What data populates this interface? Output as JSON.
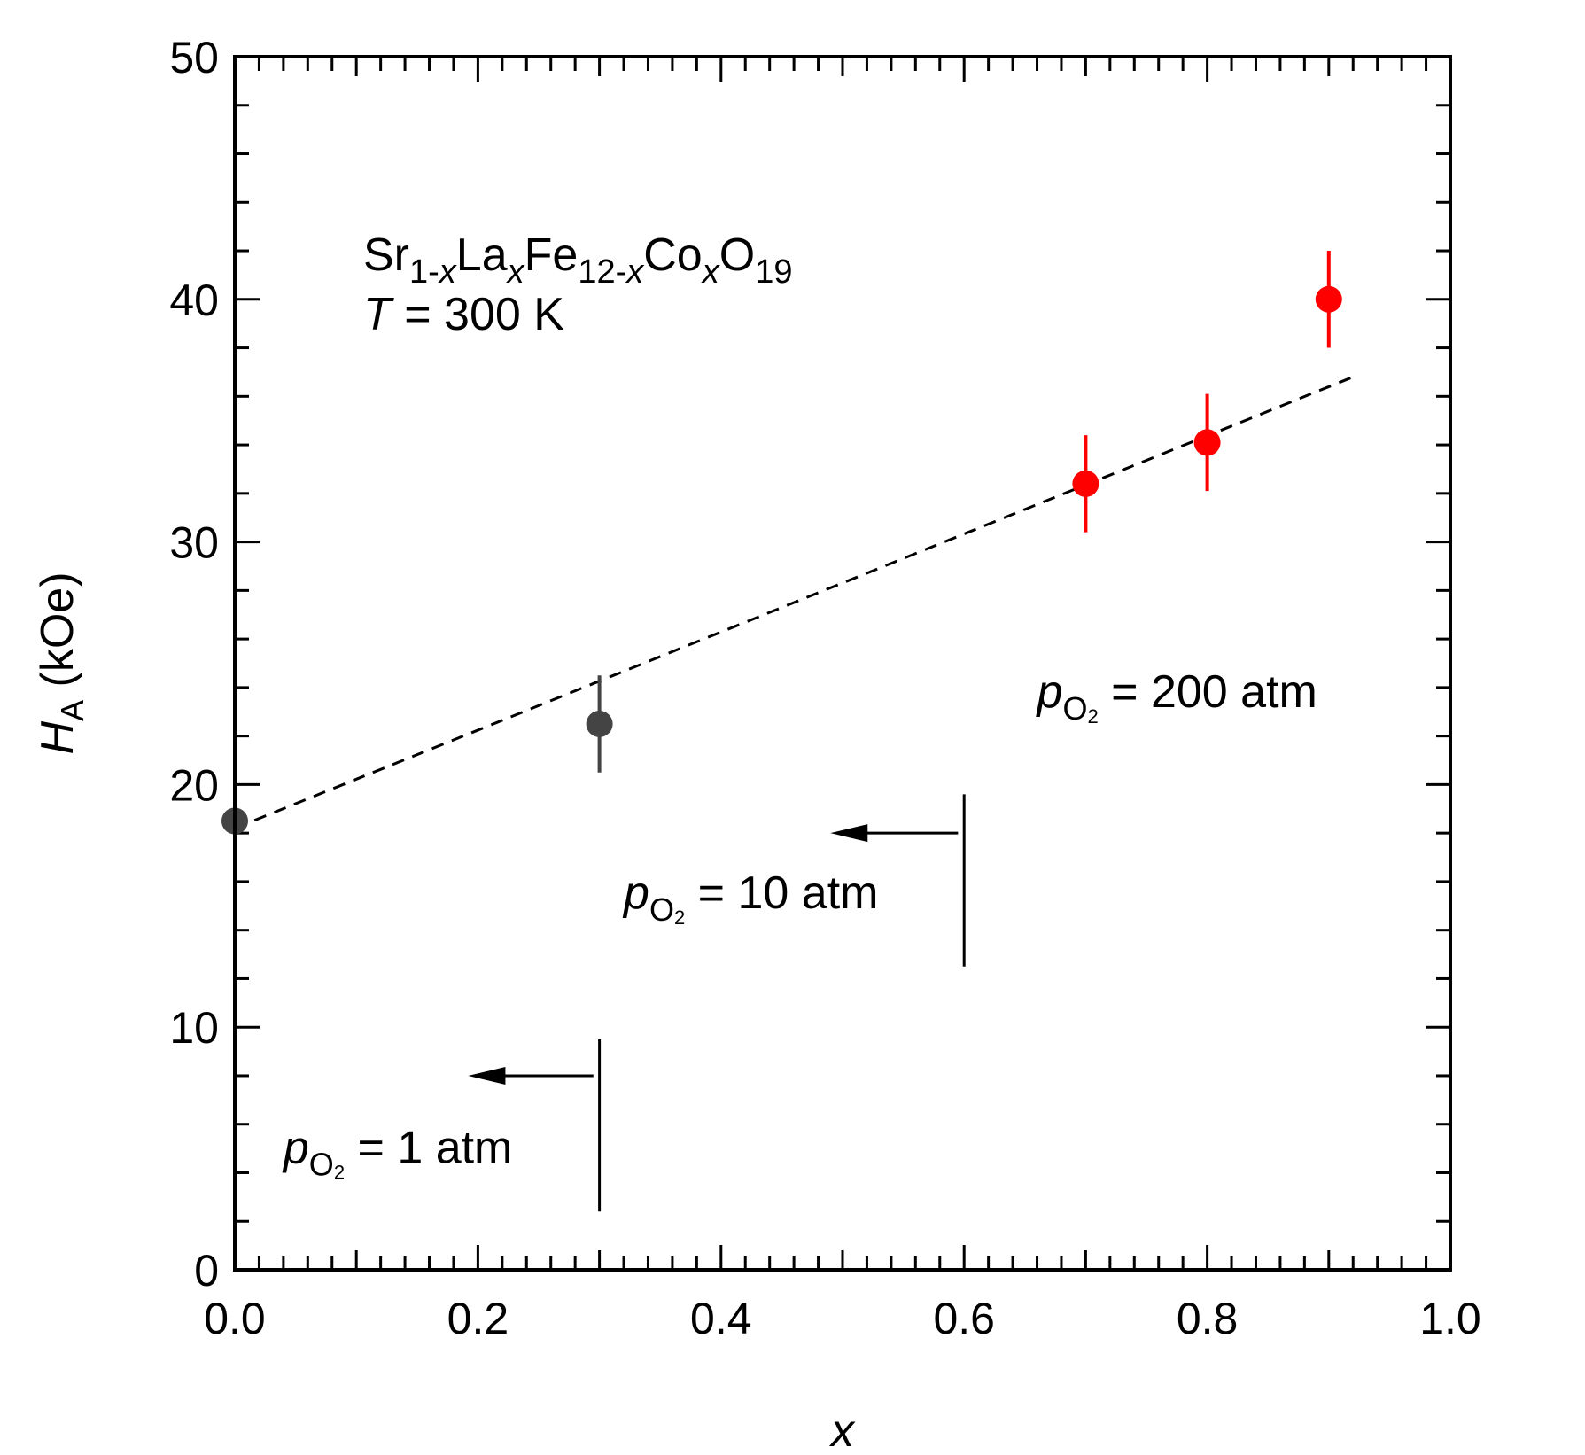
{
  "chart_data": {
    "type": "scatter",
    "xlabel": "x",
    "ylabel": "H",
    "ylabel_sub": "A",
    "ylabel_unit": "(kOe)",
    "xlim": [
      0.0,
      1.0
    ],
    "ylim": [
      0,
      50
    ],
    "xticks": [
      0.0,
      0.2,
      0.4,
      0.6,
      0.8,
      1.0
    ],
    "xtick_labels": [
      "0.0",
      "0.2",
      "0.4",
      "0.6",
      "0.8",
      "1.0"
    ],
    "yticks": [
      0,
      10,
      20,
      30,
      40,
      50
    ],
    "ytick_labels": [
      "0",
      "10",
      "20",
      "30",
      "40",
      "50"
    ],
    "grid": false,
    "formula": {
      "parts": [
        {
          "t": "Sr",
          "sub": false,
          "it": false
        },
        {
          "t": "1-",
          "sub": true,
          "it": false
        },
        {
          "t": "x",
          "sub": true,
          "it": true
        },
        {
          "t": "La",
          "sub": false,
          "it": false
        },
        {
          "t": "x",
          "sub": true,
          "it": true
        },
        {
          "t": "Fe",
          "sub": false,
          "it": false
        },
        {
          "t": "12-",
          "sub": true,
          "it": false
        },
        {
          "t": "x",
          "sub": true,
          "it": true
        },
        {
          "t": "Co",
          "sub": false,
          "it": false
        },
        {
          "t": "x",
          "sub": true,
          "it": true
        },
        {
          "t": "O",
          "sub": false,
          "it": false
        },
        {
          "t": "19",
          "sub": true,
          "it": false
        }
      ]
    },
    "temperature": {
      "symbol": "T",
      "text": " = 300 K"
    },
    "series": [
      {
        "color": "#444444",
        "points": [
          {
            "x": 0.0,
            "y": 18.5,
            "err": 2.0
          },
          {
            "x": 0.3,
            "y": 22.5,
            "err": 2.0
          }
        ]
      },
      {
        "color": "#ff0000",
        "points": [
          {
            "x": 0.7,
            "y": 32.4,
            "err": 2.0
          },
          {
            "x": 0.8,
            "y": 34.1,
            "err": 2.0
          },
          {
            "x": 0.9,
            "y": 40.0,
            "err": 2.0
          }
        ]
      }
    ],
    "fit_line": {
      "x": [
        0.0,
        0.92
      ],
      "y": [
        18.2,
        36.8
      ],
      "style": "dashed",
      "color": "#000000"
    },
    "annotations": [
      {
        "p": "p",
        "sub": "O",
        "subsub": "2",
        "text": " = 200 atm",
        "x": 0.66,
        "y": 23.2
      },
      {
        "p": "p",
        "sub": "O",
        "subsub": "2",
        "text": " = 10 atm",
        "x": 0.32,
        "y": 14.9,
        "boundary_x": 0.6,
        "boundary_y": [
          12.5,
          19.6
        ],
        "arrow_y": 18.0,
        "arrow_from": 0.595,
        "arrow_to": 0.49
      },
      {
        "p": "p",
        "sub": "O",
        "subsub": "2",
        "text": " = 1 atm",
        "x": 0.04,
        "y": 4.4,
        "boundary_x": 0.3,
        "boundary_y": [
          2.4,
          9.5
        ],
        "arrow_y": 8.0,
        "arrow_from": 0.295,
        "arrow_to": 0.192
      }
    ]
  }
}
